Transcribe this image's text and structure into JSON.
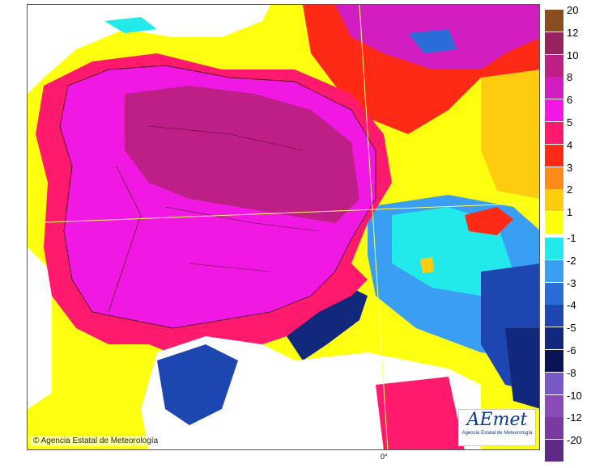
{
  "map": {
    "copyright": "© Agencia Estatal de Meteorología",
    "logo_text": "AEmet",
    "logo_subtitle": "Agencia Estatal de Meteorología",
    "longitude_label": "0°"
  },
  "legend": {
    "positive": [
      {
        "label": "20",
        "color": "#8a4e1e"
      },
      {
        "label": "12",
        "color": "#96235e"
      },
      {
        "label": "10",
        "color": "#be1f87"
      },
      {
        "label": "8",
        "color": "#d21ec0"
      },
      {
        "label": "6",
        "color": "#f018e2"
      },
      {
        "label": "5",
        "color": "#ff1a6e"
      },
      {
        "label": "4",
        "color": "#ff2a16"
      },
      {
        "label": "3",
        "color": "#ff8a1a"
      },
      {
        "label": "2",
        "color": "#ffcc10"
      },
      {
        "label": "1",
        "color": "#ffff10"
      }
    ],
    "negative": [
      {
        "label": "-1",
        "color": "#22eaea"
      },
      {
        "label": "-2",
        "color": "#3a9ef2"
      },
      {
        "label": "-3",
        "color": "#2a6cd8"
      },
      {
        "label": "-4",
        "color": "#1e46b0"
      },
      {
        "label": "-5",
        "color": "#12287c"
      },
      {
        "label": "-6",
        "color": "#0a1454"
      },
      {
        "label": "-8",
        "color": "#7a58c6"
      },
      {
        "label": "-10",
        "color": "#8a4ab8"
      },
      {
        "label": "-12",
        "color": "#7a3aa0"
      },
      {
        "label": "-20",
        "color": "#5e2a86"
      }
    ]
  }
}
